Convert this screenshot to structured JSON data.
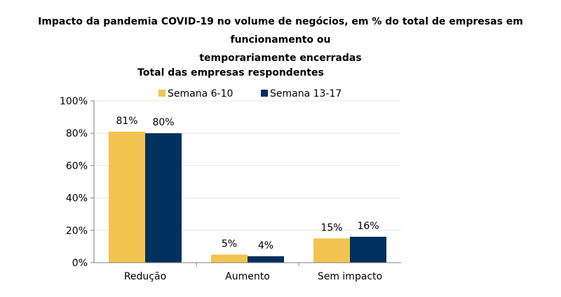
{
  "title": {
    "line1": "Impacto da pandemia COVID-19 no volume de negócios, em % do total de empresas em funcionamento ou",
    "line2": "temporariamente encerradas"
  },
  "colors": {
    "series1": "#f2c44f",
    "series2": "#00305e",
    "grid": "#e6e6e6",
    "axis": "#808080"
  },
  "chart_data": {
    "type": "bar",
    "subtitle": "Total das empresas respondentes",
    "categories": [
      "Redução",
      "Aumento",
      "Sem impacto"
    ],
    "series": [
      {
        "name": "Semana 6-10",
        "values": [
          81,
          5,
          15
        ]
      },
      {
        "name": "Semana 13-17",
        "values": [
          80,
          4,
          16
        ]
      }
    ],
    "ylim": [
      0,
      100
    ],
    "yticks": [
      "0%",
      "20%",
      "40%",
      "60%",
      "80%",
      "100%"
    ],
    "data_labels": [
      [
        "81%",
        "5%",
        "15%"
      ],
      [
        "80%",
        "4%",
        "16%"
      ]
    ],
    "legend": "top",
    "grid": true
  }
}
